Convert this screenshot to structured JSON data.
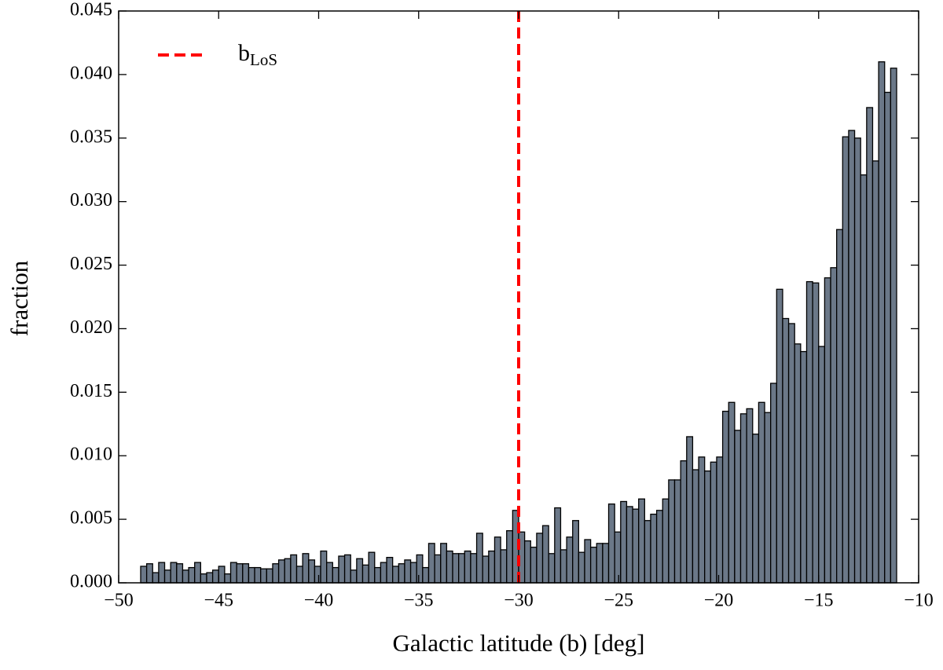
{
  "chart_data": {
    "type": "histogram",
    "xlabel": "Galactic latitude (b) [deg]",
    "ylabel": "fraction",
    "bins": [
      -48.9,
      -48.6,
      -48.3,
      -48.0,
      -47.7,
      -47.4,
      -47.1,
      -46.8,
      -46.5,
      -46.2,
      -45.9,
      -45.6,
      -45.3,
      -45.0,
      -44.7,
      -44.4,
      -44.1,
      -43.8,
      -43.5,
      -43.2,
      -42.9,
      -42.6,
      -42.3,
      -42.0,
      -41.7,
      -41.4,
      -41.1,
      -40.8,
      -40.5,
      -40.2,
      -39.9,
      -39.6,
      -39.3,
      -39.0,
      -38.7,
      -38.4,
      -38.1,
      -37.8,
      -37.5,
      -37.2,
      -36.9,
      -36.6,
      -36.3,
      -36.0,
      -35.7,
      -35.4,
      -35.1,
      -34.8,
      -34.5,
      -34.2,
      -33.9,
      -33.6,
      -33.3,
      -33.0,
      -32.7,
      -32.4,
      -32.1,
      -31.8,
      -31.5,
      -31.2,
      -30.9,
      -30.6,
      -30.3,
      -30.0,
      -29.7,
      -29.4,
      -29.1,
      -28.8,
      -28.5,
      -28.2,
      -27.9,
      -27.6,
      -27.3,
      -27.0,
      -26.7,
      -26.4,
      -26.1,
      -25.8,
      -25.5,
      -25.2,
      -24.9,
      -24.6,
      -24.3,
      -24.0,
      -23.7,
      -23.4,
      -23.1,
      -22.8,
      -22.5,
      -22.2,
      -21.9,
      -21.6,
      -21.3,
      -21.0,
      -20.7,
      -20.4,
      -20.1,
      -19.8,
      -19.5,
      -19.2,
      -18.9,
      -18.6,
      -18.3,
      -18.0,
      -17.7,
      -17.4,
      -17.1,
      -16.8,
      -16.5,
      -16.2,
      -15.9,
      -15.6,
      -15.3,
      -15.0,
      -14.7,
      -14.4,
      -14.1,
      -13.8,
      -13.5,
      -13.2,
      -12.9,
      -12.6,
      -12.3,
      -12.0,
      -11.7,
      -11.4,
      -11.1
    ],
    "values": [
      0.0013,
      0.0015,
      0.0008,
      0.0016,
      0.001,
      0.0016,
      0.0015,
      0.001,
      0.0012,
      0.0016,
      0.0007,
      0.0008,
      0.001,
      0.0013,
      0.0007,
      0.0016,
      0.0015,
      0.0015,
      0.0012,
      0.0012,
      0.0011,
      0.0011,
      0.0015,
      0.0018,
      0.0019,
      0.0022,
      0.0013,
      0.0023,
      0.0018,
      0.0013,
      0.0025,
      0.0016,
      0.0012,
      0.0021,
      0.0022,
      0.001,
      0.0019,
      0.0014,
      0.0024,
      0.0012,
      0.0016,
      0.002,
      0.0013,
      0.0015,
      0.0018,
      0.0016,
      0.0022,
      0.0012,
      0.0031,
      0.0022,
      0.0031,
      0.0025,
      0.0023,
      0.0023,
      0.0025,
      0.0023,
      0.0039,
      0.0021,
      0.0025,
      0.0036,
      0.0026,
      0.0041,
      0.0057,
      0.004,
      0.0033,
      0.0028,
      0.0039,
      0.0045,
      0.0023,
      0.0059,
      0.0026,
      0.0036,
      0.0049,
      0.0024,
      0.0034,
      0.0028,
      0.0031,
      0.0031,
      0.0062,
      0.004,
      0.0064,
      0.006,
      0.0058,
      0.0066,
      0.0049,
      0.0054,
      0.0057,
      0.0066,
      0.0081,
      0.0081,
      0.0096,
      0.0115,
      0.0089,
      0.0099,
      0.0088,
      0.0095,
      0.0099,
      0.0135,
      0.0142,
      0.012,
      0.0133,
      0.0137,
      0.0117,
      0.0142,
      0.0134,
      0.0157,
      0.0231,
      0.0208,
      0.0204,
      0.0188,
      0.0182,
      0.0237,
      0.0236,
      0.0186,
      0.024,
      0.0248,
      0.0278,
      0.0351,
      0.0356,
      0.035,
      0.0321,
      0.0374,
      0.0332,
      0.041,
      0.0386,
      0.0405
    ],
    "color": "#6b7888",
    "xlim": [
      -50,
      -10
    ],
    "ylim": [
      0,
      0.045
    ],
    "xticks": [
      {
        "value": -50,
        "label": "−50"
      },
      {
        "value": -45,
        "label": "−45"
      },
      {
        "value": -40,
        "label": "−40"
      },
      {
        "value": -35,
        "label": "−35"
      },
      {
        "value": -30,
        "label": "−30"
      },
      {
        "value": -25,
        "label": "−25"
      },
      {
        "value": -20,
        "label": "−20"
      },
      {
        "value": -15,
        "label": "−15"
      },
      {
        "value": -10,
        "label": "−10"
      }
    ],
    "yticks": [
      {
        "value": 0,
        "label": "0.000"
      },
      {
        "value": 0.005,
        "label": "0.005"
      },
      {
        "value": 0.01,
        "label": "0.010"
      },
      {
        "value": 0.015,
        "label": "0.015"
      },
      {
        "value": 0.02,
        "label": "0.020"
      },
      {
        "value": 0.025,
        "label": "0.025"
      },
      {
        "value": 0.03,
        "label": "0.030"
      },
      {
        "value": 0.035,
        "label": "0.035"
      },
      {
        "value": 0.04,
        "label": "0.040"
      },
      {
        "value": 0.045,
        "label": "0.045"
      }
    ],
    "vline": {
      "x": -30.0,
      "color": "#ff0000",
      "name": "b",
      "name_sub": "LoS"
    },
    "legend": "upper left"
  }
}
